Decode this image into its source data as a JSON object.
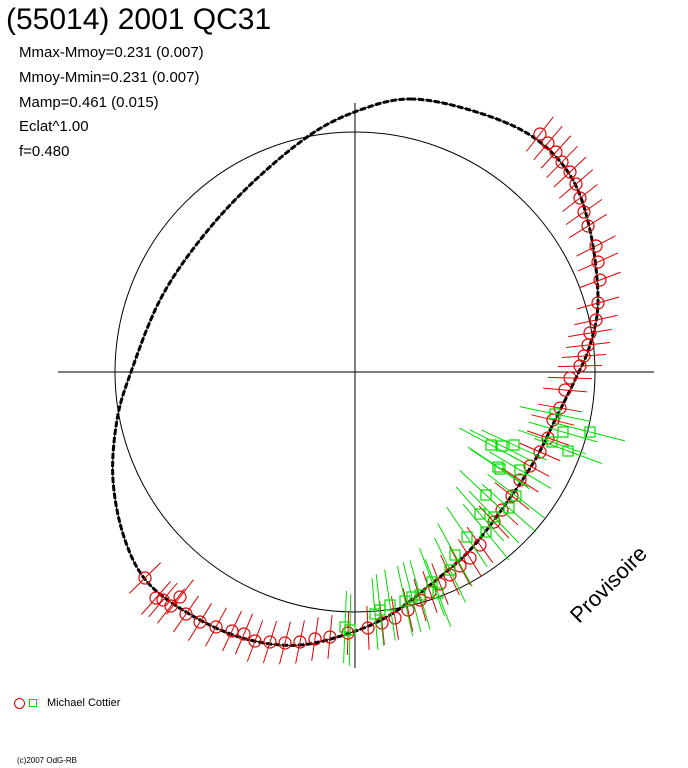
{
  "header": {
    "title": "(55014) 2001 QC31",
    "stats": [
      "Mmax-Mmoy=0.231 (0.007)",
      "Mmoy-Mmin=0.231 (0.007)",
      "Mamp=0.461 (0.015)",
      "Eclat^1.00",
      "f=0.480"
    ]
  },
  "watermark": "Provisoire",
  "legend": {
    "observer": "Michael Cottier",
    "series_colors": {
      "circle": "#e00000",
      "square": "#00dd00"
    }
  },
  "footer": {
    "copyright": "(c)2007 OdG-RB"
  },
  "colors": {
    "axis": "#000000",
    "curve": "#000000",
    "red": "#e00000",
    "green": "#00dd00"
  },
  "chart_data": {
    "type": "scatter",
    "title": "(55014) 2001 QC31",
    "subtitle": "Polar lightcurve plot",
    "xlabel": "",
    "ylabel": "",
    "grid": false,
    "axes": {
      "center": [
        355,
        372
      ],
      "x_range": [
        58,
        654
      ],
      "y_range": [
        103,
        668
      ]
    },
    "reference_circle": {
      "cx": 355,
      "cy": 372,
      "r": 240
    },
    "model_curve": [
      [
        410,
        99
      ],
      [
        470,
        110
      ],
      [
        530,
        135
      ],
      [
        570,
        175
      ],
      [
        590,
        230
      ],
      [
        598,
        300
      ],
      [
        590,
        345
      ],
      [
        575,
        380
      ],
      [
        555,
        420
      ],
      [
        535,
        460
      ],
      [
        505,
        505
      ],
      [
        470,
        550
      ],
      [
        430,
        585
      ],
      [
        390,
        615
      ],
      [
        350,
        633
      ],
      [
        300,
        645
      ],
      [
        250,
        640
      ],
      [
        200,
        620
      ],
      [
        150,
        585
      ],
      [
        125,
        540
      ],
      [
        113,
        480
      ],
      [
        117,
        420
      ],
      [
        131,
        372
      ],
      [
        160,
        300
      ],
      [
        200,
        240
      ],
      [
        250,
        185
      ],
      [
        310,
        135
      ],
      [
        360,
        110
      ],
      [
        410,
        99
      ]
    ],
    "series": [
      {
        "name": "Michael Cottier (red circles)",
        "marker": "circle",
        "color": "#e00000",
        "points": [
          [
            540,
            134
          ],
          [
            548,
            143
          ],
          [
            556,
            152
          ],
          [
            562,
            162
          ],
          [
            570,
            172
          ],
          [
            576,
            184
          ],
          [
            580,
            198
          ],
          [
            584,
            212
          ],
          [
            588,
            226
          ],
          [
            596,
            246
          ],
          [
            598,
            262
          ],
          [
            600,
            280
          ],
          [
            598,
            303
          ],
          [
            596,
            320
          ],
          [
            590,
            333
          ],
          [
            588,
            345
          ],
          [
            584,
            356
          ],
          [
            580,
            366
          ],
          [
            570,
            378
          ],
          [
            565,
            390
          ],
          [
            560,
            408
          ],
          [
            553,
            420
          ],
          [
            548,
            438
          ],
          [
            540,
            452
          ],
          [
            530,
            466
          ],
          [
            520,
            480
          ],
          [
            512,
            496
          ],
          [
            502,
            510
          ],
          [
            494,
            522
          ],
          [
            480,
            545
          ],
          [
            470,
            558
          ],
          [
            460,
            566
          ],
          [
            450,
            575
          ],
          [
            440,
            584
          ],
          [
            430,
            592
          ],
          [
            420,
            600
          ],
          [
            408,
            610
          ],
          [
            395,
            618
          ],
          [
            382,
            623
          ],
          [
            368,
            628
          ],
          [
            348,
            633
          ],
          [
            330,
            637
          ],
          [
            315,
            639
          ],
          [
            300,
            642
          ],
          [
            285,
            643
          ],
          [
            270,
            642
          ],
          [
            255,
            641
          ],
          [
            244,
            634
          ],
          [
            232,
            631
          ],
          [
            216,
            627
          ],
          [
            200,
            622
          ],
          [
            186,
            614
          ],
          [
            171,
            606
          ],
          [
            163,
            600
          ],
          [
            156,
            598
          ],
          [
            145,
            578
          ],
          [
            180,
            597
          ]
        ]
      },
      {
        "name": "Michael Cottier (green squares)",
        "marker": "square",
        "color": "#00dd00",
        "points": [
          [
            555,
            414
          ],
          [
            563,
            432
          ],
          [
            590,
            432
          ],
          [
            552,
            442
          ],
          [
            568,
            451
          ],
          [
            514,
            445
          ],
          [
            502,
            446
          ],
          [
            491,
            445
          ],
          [
            500,
            469
          ],
          [
            498,
            467
          ],
          [
            520,
            470
          ],
          [
            486,
            495
          ],
          [
            494,
            517
          ],
          [
            516,
            496
          ],
          [
            480,
            514
          ],
          [
            509,
            508
          ],
          [
            486,
            532
          ],
          [
            467,
            537
          ],
          [
            455,
            555
          ],
          [
            450,
            570
          ],
          [
            432,
            582
          ],
          [
            438,
            593
          ],
          [
            420,
            595
          ],
          [
            412,
            597
          ],
          [
            405,
            601
          ],
          [
            390,
            605
          ],
          [
            380,
            610
          ],
          [
            375,
            614
          ],
          [
            350,
            630
          ],
          [
            345,
            627
          ]
        ]
      }
    ]
  }
}
